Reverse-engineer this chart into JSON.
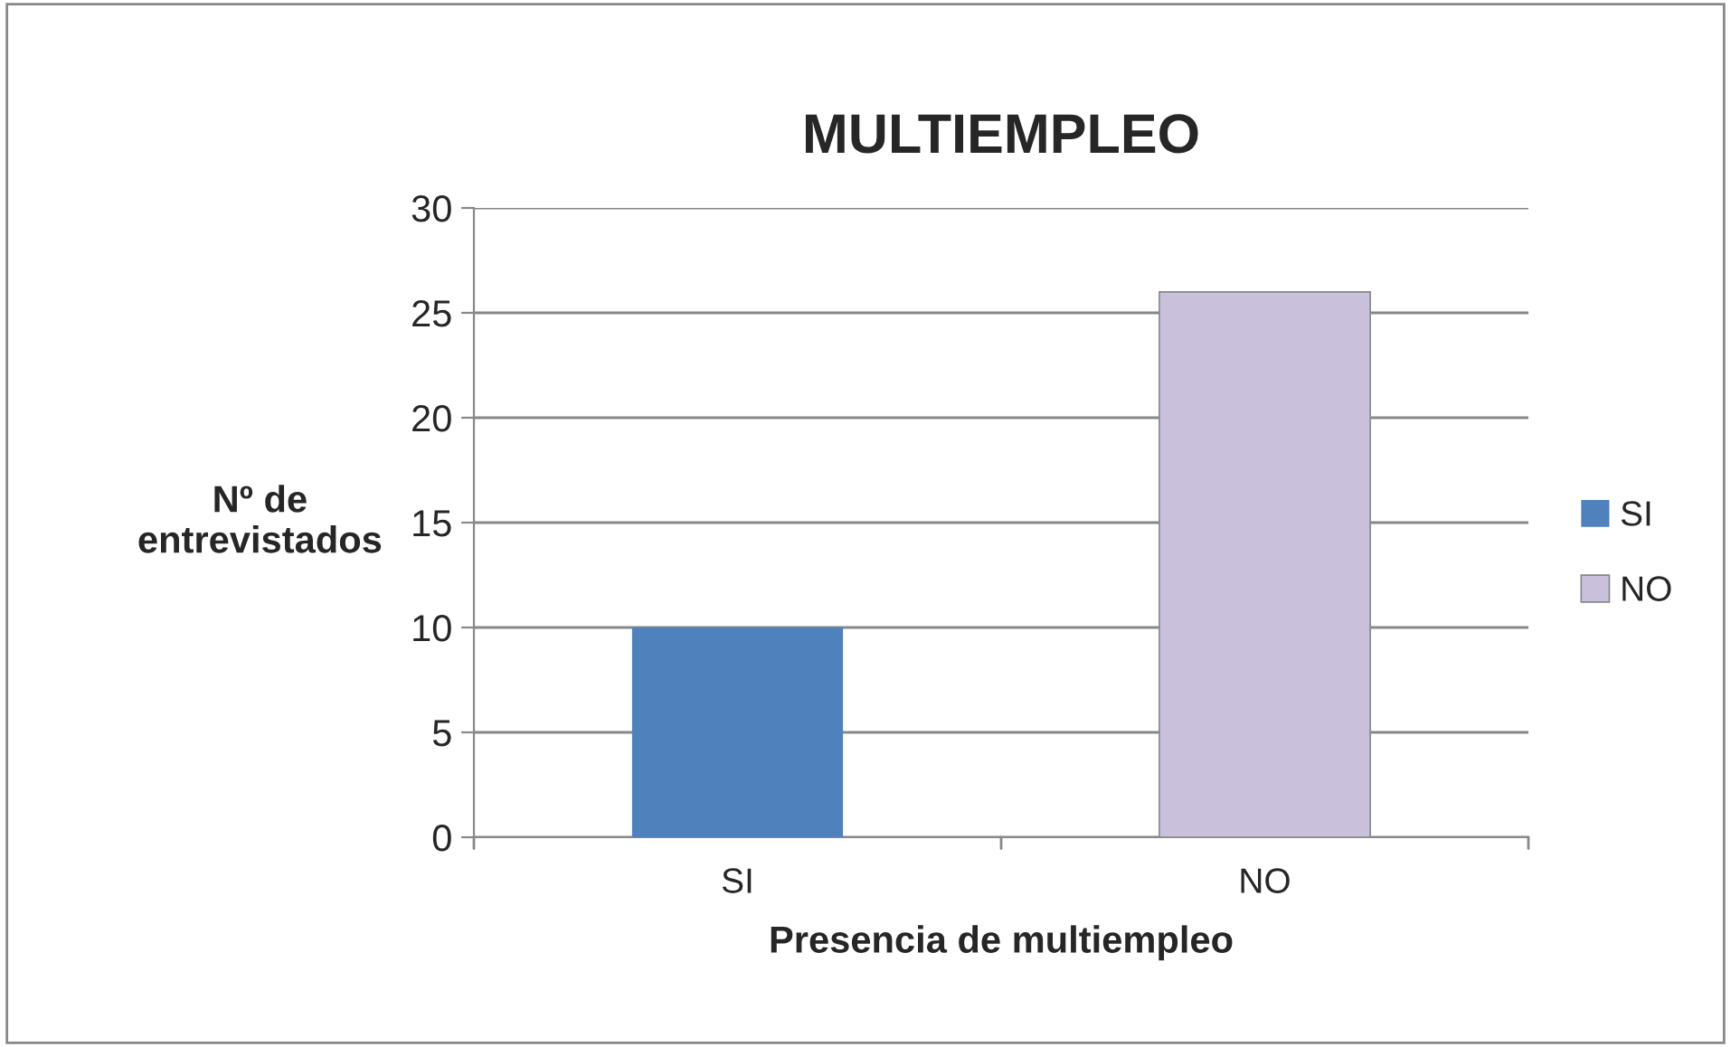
{
  "chart_data": {
    "type": "bar",
    "title": "MULTIEMPLEO",
    "xlabel": "Presencia de multiempleo",
    "ylabel": "Nº de\nentrevistados",
    "categories": [
      "SI",
      "NO"
    ],
    "stacked": true,
    "series": [
      {
        "name": "SI",
        "color": "#4f81bd",
        "values": [
          10,
          null
        ]
      },
      {
        "name": "NO",
        "color": "#c9c0dc",
        "values": [
          null,
          26
        ]
      }
    ],
    "ylim": [
      0,
      30
    ],
    "yticks": [
      0,
      5,
      10,
      15,
      20,
      25,
      30
    ],
    "grid": "y",
    "legend": "right"
  }
}
